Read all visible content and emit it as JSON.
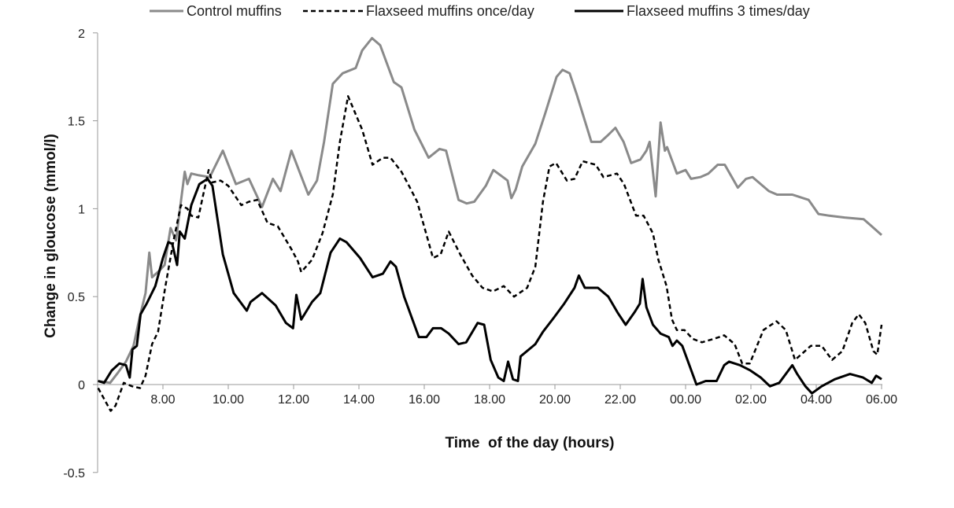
{
  "chart_data": {
    "type": "line",
    "title": "",
    "xlabel": "Time  of the day (hours)",
    "ylabel": "Change in gloucose (mmol/l)",
    "ylim": [
      -0.5,
      2
    ],
    "xlim": [
      "06:00",
      "06:00"
    ],
    "x_ticks": [
      "8.00",
      "10.00",
      "12.00",
      "14.00",
      "16.00",
      "18.00",
      "20.00",
      "22.00",
      "00.00",
      "02.00",
      "04.00",
      "06.00"
    ],
    "y_ticks": [
      "2",
      "1.5",
      "1",
      "0.5",
      "0",
      "-0.5"
    ],
    "y_tick_values": [
      2,
      1.5,
      1,
      0.5,
      0,
      -0.5
    ],
    "grid": false,
    "legend_position": "top",
    "series": [
      {
        "name": "Control muffins",
        "color": "#8a8a8a",
        "style": "solid",
        "points": [
          [
            "06:00",
            0.02
          ],
          [
            "06:23",
            0.01
          ],
          [
            "06:38",
            0.07
          ],
          [
            "06:52",
            0.13
          ],
          [
            "07:06",
            0.22
          ],
          [
            "07:17",
            0.38
          ],
          [
            "07:28",
            0.52
          ],
          [
            "07:35",
            0.75
          ],
          [
            "07:40",
            0.61
          ],
          [
            "07:54",
            0.65
          ],
          [
            "08:03",
            0.68
          ],
          [
            "08:14",
            0.89
          ],
          [
            "08:24",
            0.82
          ],
          [
            "08:33",
            1.04
          ],
          [
            "08:40",
            1.21
          ],
          [
            "08:45",
            1.14
          ],
          [
            "08:52",
            1.2
          ],
          [
            "09:06",
            1.19
          ],
          [
            "09:26",
            1.18
          ],
          [
            "09:50",
            1.33
          ],
          [
            "10:14",
            1.14
          ],
          [
            "10:38",
            1.17
          ],
          [
            "11:02",
            1.01
          ],
          [
            "11:22",
            1.17
          ],
          [
            "11:36",
            1.1
          ],
          [
            "11:56",
            1.33
          ],
          [
            "12:27",
            1.08
          ],
          [
            "12:43",
            1.16
          ],
          [
            "12:56",
            1.38
          ],
          [
            "13:12",
            1.71
          ],
          [
            "13:30",
            1.77
          ],
          [
            "13:54",
            1.8
          ],
          [
            "14:06",
            1.9
          ],
          [
            "14:24",
            1.97
          ],
          [
            "14:39",
            1.93
          ],
          [
            "15:04",
            1.72
          ],
          [
            "15:18",
            1.69
          ],
          [
            "15:42",
            1.45
          ],
          [
            "16:08",
            1.29
          ],
          [
            "16:28",
            1.34
          ],
          [
            "16:40",
            1.33
          ],
          [
            "17:03",
            1.05
          ],
          [
            "17:18",
            1.03
          ],
          [
            "17:32",
            1.04
          ],
          [
            "17:53",
            1.13
          ],
          [
            "18:07",
            1.22
          ],
          [
            "18:33",
            1.16
          ],
          [
            "18:40",
            1.06
          ],
          [
            "18:48",
            1.11
          ],
          [
            "19:00",
            1.24
          ],
          [
            "19:24",
            1.37
          ],
          [
            "19:42",
            1.54
          ],
          [
            "20:03",
            1.75
          ],
          [
            "20:14",
            1.79
          ],
          [
            "20:27",
            1.77
          ],
          [
            "20:40",
            1.65
          ],
          [
            "21:00",
            1.45
          ],
          [
            "21:07",
            1.38
          ],
          [
            "21:24",
            1.38
          ],
          [
            "21:38",
            1.42
          ],
          [
            "21:51",
            1.46
          ],
          [
            "22:06",
            1.38
          ],
          [
            "22:20",
            1.26
          ],
          [
            "22:37",
            1.28
          ],
          [
            "22:48",
            1.33
          ],
          [
            "22:54",
            1.38
          ],
          [
            "23:05",
            1.07
          ],
          [
            "23:14",
            1.49
          ],
          [
            "23:22",
            1.33
          ],
          [
            "23:26",
            1.35
          ],
          [
            "23:44",
            1.2
          ],
          [
            "00:00",
            1.22
          ],
          [
            "00:10",
            1.17
          ],
          [
            "00:27",
            1.18
          ],
          [
            "00:42",
            1.2
          ],
          [
            "00:59",
            1.25
          ],
          [
            "01:12",
            1.25
          ],
          [
            "01:36",
            1.12
          ],
          [
            "01:51",
            1.17
          ],
          [
            "02:03",
            1.18
          ],
          [
            "02:33",
            1.1
          ],
          [
            "02:48",
            1.08
          ],
          [
            "03:16",
            1.08
          ],
          [
            "03:46",
            1.05
          ],
          [
            "04:04",
            0.97
          ],
          [
            "04:24",
            0.96
          ],
          [
            "04:52",
            0.95
          ],
          [
            "05:27",
            0.94
          ],
          [
            "05:42",
            0.9
          ],
          [
            "06:00",
            0.85
          ]
        ]
      },
      {
        "name": "Flaxseed muffins once/day",
        "color": "#000000",
        "style": "dashed",
        "points": [
          [
            "06:01",
            -0.02
          ],
          [
            "06:24",
            -0.15
          ],
          [
            "06:33",
            -0.12
          ],
          [
            "06:48",
            0.01
          ],
          [
            "07:03",
            -0.01
          ],
          [
            "07:18",
            -0.02
          ],
          [
            "07:28",
            0.05
          ],
          [
            "07:40",
            0.23
          ],
          [
            "07:51",
            0.3
          ],
          [
            "08:04",
            0.55
          ],
          [
            "08:19",
            0.81
          ],
          [
            "08:33",
            1.02
          ],
          [
            "08:45",
            1.0
          ],
          [
            "08:52",
            0.96
          ],
          [
            "09:05",
            0.95
          ],
          [
            "09:14",
            1.08
          ],
          [
            "09:24",
            1.22
          ],
          [
            "09:31",
            1.15
          ],
          [
            "09:46",
            1.16
          ],
          [
            "10:00",
            1.13
          ],
          [
            "10:24",
            1.02
          ],
          [
            "10:38",
            1.04
          ],
          [
            "10:53",
            1.05
          ],
          [
            "11:12",
            0.92
          ],
          [
            "11:31",
            0.9
          ],
          [
            "11:56",
            0.77
          ],
          [
            "12:08",
            0.7
          ],
          [
            "12:14",
            0.64
          ],
          [
            "12:34",
            0.71
          ],
          [
            "12:53",
            0.86
          ],
          [
            "13:12",
            1.08
          ],
          [
            "13:25",
            1.38
          ],
          [
            "13:40",
            1.64
          ],
          [
            "14:06",
            1.45
          ],
          [
            "14:25",
            1.25
          ],
          [
            "14:44",
            1.29
          ],
          [
            "14:58",
            1.29
          ],
          [
            "15:18",
            1.21
          ],
          [
            "15:32",
            1.13
          ],
          [
            "15:47",
            1.04
          ],
          [
            "16:06",
            0.83
          ],
          [
            "16:16",
            0.72
          ],
          [
            "16:30",
            0.74
          ],
          [
            "16:45",
            0.87
          ],
          [
            "17:06",
            0.74
          ],
          [
            "17:28",
            0.62
          ],
          [
            "17:47",
            0.55
          ],
          [
            "18:06",
            0.53
          ],
          [
            "18:26",
            0.56
          ],
          [
            "18:45",
            0.5
          ],
          [
            "19:09",
            0.55
          ],
          [
            "19:24",
            0.67
          ],
          [
            "19:38",
            1.04
          ],
          [
            "19:50",
            1.24
          ],
          [
            "20:02",
            1.26
          ],
          [
            "20:22",
            1.16
          ],
          [
            "20:36",
            1.17
          ],
          [
            "20:51",
            1.27
          ],
          [
            "21:15",
            1.25
          ],
          [
            "21:29",
            1.18
          ],
          [
            "21:54",
            1.2
          ],
          [
            "22:07",
            1.14
          ],
          [
            "22:29",
            0.96
          ],
          [
            "22:43",
            0.96
          ],
          [
            "23:00",
            0.86
          ],
          [
            "23:10",
            0.71
          ],
          [
            "23:25",
            0.56
          ],
          [
            "23:35",
            0.37
          ],
          [
            "23:44",
            0.31
          ],
          [
            "23:58",
            0.31
          ],
          [
            "00:13",
            0.26
          ],
          [
            "00:30",
            0.24
          ],
          [
            "00:52",
            0.26
          ],
          [
            "01:11",
            0.28
          ],
          [
            "01:30",
            0.23
          ],
          [
            "01:44",
            0.12
          ],
          [
            "01:58",
            0.12
          ],
          [
            "02:23",
            0.31
          ],
          [
            "02:47",
            0.36
          ],
          [
            "03:04",
            0.31
          ],
          [
            "03:21",
            0.14
          ],
          [
            "03:50",
            0.22
          ],
          [
            "04:10",
            0.22
          ],
          [
            "04:29",
            0.14
          ],
          [
            "04:48",
            0.19
          ],
          [
            "05:06",
            0.35
          ],
          [
            "05:18",
            0.4
          ],
          [
            "05:30",
            0.35
          ],
          [
            "05:45",
            0.19
          ],
          [
            "05:52",
            0.17
          ],
          [
            "06:00",
            0.34
          ]
        ]
      },
      {
        "name": "Flaxseed muffins 3 times/day",
        "color": "#000000",
        "style": "solid",
        "points": [
          [
            "06:01",
            0.02
          ],
          [
            "06:12",
            0.01
          ],
          [
            "06:26",
            0.08
          ],
          [
            "06:40",
            0.12
          ],
          [
            "06:52",
            0.11
          ],
          [
            "06:59",
            0.04
          ],
          [
            "07:04",
            0.2
          ],
          [
            "07:12",
            0.22
          ],
          [
            "07:19",
            0.4
          ],
          [
            "07:30",
            0.46
          ],
          [
            "07:46",
            0.56
          ],
          [
            "08:00",
            0.72
          ],
          [
            "08:10",
            0.81
          ],
          [
            "08:17",
            0.8
          ],
          [
            "08:26",
            0.68
          ],
          [
            "08:31",
            0.87
          ],
          [
            "08:40",
            0.83
          ],
          [
            "08:52",
            1.02
          ],
          [
            "09:07",
            1.14
          ],
          [
            "09:22",
            1.17
          ],
          [
            "09:31",
            1.13
          ],
          [
            "09:50",
            0.74
          ],
          [
            "10:10",
            0.52
          ],
          [
            "10:34",
            0.42
          ],
          [
            "10:41",
            0.47
          ],
          [
            "11:02",
            0.52
          ],
          [
            "11:27",
            0.45
          ],
          [
            "11:46",
            0.35
          ],
          [
            "11:59",
            0.32
          ],
          [
            "12:05",
            0.51
          ],
          [
            "12:14",
            0.37
          ],
          [
            "12:24",
            0.42
          ],
          [
            "12:34",
            0.47
          ],
          [
            "12:49",
            0.52
          ],
          [
            "13:08",
            0.75
          ],
          [
            "13:25",
            0.83
          ],
          [
            "13:37",
            0.81
          ],
          [
            "14:02",
            0.72
          ],
          [
            "14:25",
            0.61
          ],
          [
            "14:44",
            0.63
          ],
          [
            "14:58",
            0.7
          ],
          [
            "15:08",
            0.67
          ],
          [
            "15:23",
            0.5
          ],
          [
            "15:50",
            0.27
          ],
          [
            "16:04",
            0.27
          ],
          [
            "16:16",
            0.32
          ],
          [
            "16:31",
            0.32
          ],
          [
            "16:45",
            0.29
          ],
          [
            "17:03",
            0.23
          ],
          [
            "17:17",
            0.24
          ],
          [
            "17:38",
            0.35
          ],
          [
            "17:50",
            0.34
          ],
          [
            "18:02",
            0.14
          ],
          [
            "18:16",
            0.04
          ],
          [
            "18:26",
            0.02
          ],
          [
            "18:34",
            0.13
          ],
          [
            "18:43",
            0.03
          ],
          [
            "18:52",
            0.02
          ],
          [
            "18:57",
            0.16
          ],
          [
            "19:24",
            0.23
          ],
          [
            "19:38",
            0.3
          ],
          [
            "19:58",
            0.38
          ],
          [
            "20:17",
            0.46
          ],
          [
            "20:36",
            0.55
          ],
          [
            "20:44",
            0.62
          ],
          [
            "20:55",
            0.55
          ],
          [
            "21:19",
            0.55
          ],
          [
            "21:38",
            0.5
          ],
          [
            "21:55",
            0.41
          ],
          [
            "22:10",
            0.34
          ],
          [
            "22:26",
            0.41
          ],
          [
            "22:36",
            0.46
          ],
          [
            "22:41",
            0.6
          ],
          [
            "22:48",
            0.44
          ],
          [
            "23:00",
            0.34
          ],
          [
            "23:14",
            0.29
          ],
          [
            "23:29",
            0.27
          ],
          [
            "23:36",
            0.22
          ],
          [
            "23:44",
            0.25
          ],
          [
            "23:54",
            0.22
          ],
          [
            "00:20",
            0.0
          ],
          [
            "00:37",
            0.02
          ],
          [
            "00:57",
            0.02
          ],
          [
            "01:11",
            0.11
          ],
          [
            "01:20",
            0.13
          ],
          [
            "01:40",
            0.11
          ],
          [
            "01:59",
            0.08
          ],
          [
            "02:18",
            0.04
          ],
          [
            "02:35",
            -0.01
          ],
          [
            "02:52",
            0.01
          ],
          [
            "03:16",
            0.11
          ],
          [
            "03:25",
            0.06
          ],
          [
            "03:40",
            -0.01
          ],
          [
            "03:52",
            -0.05
          ],
          [
            "04:10",
            -0.01
          ],
          [
            "04:34",
            0.03
          ],
          [
            "05:02",
            0.06
          ],
          [
            "05:26",
            0.04
          ],
          [
            "05:42",
            0.01
          ],
          [
            "05:50",
            0.05
          ],
          [
            "06:00",
            0.03
          ]
        ]
      }
    ]
  }
}
